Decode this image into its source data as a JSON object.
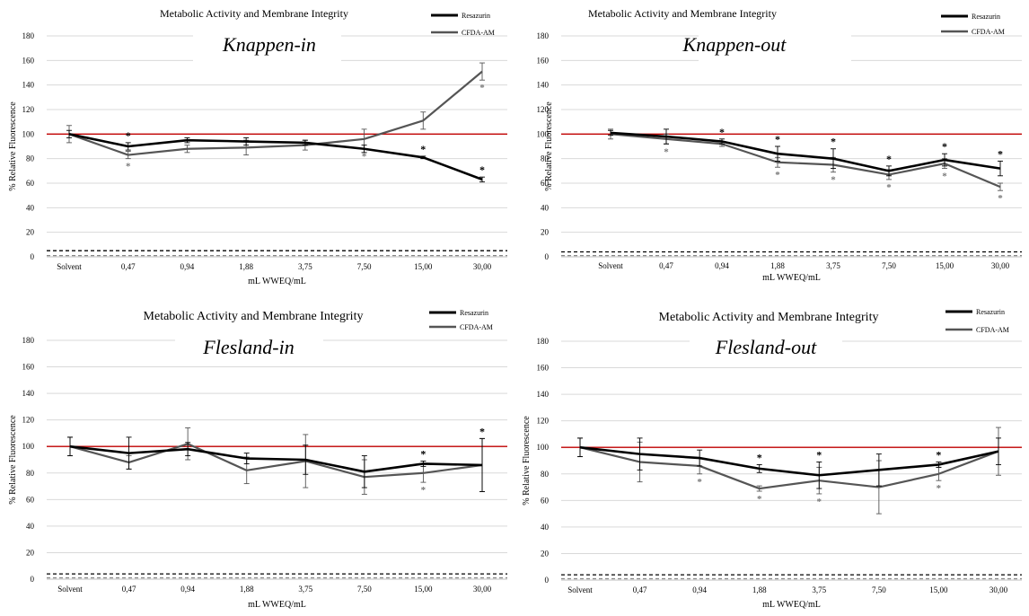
{
  "figure": {
    "colors": {
      "resazurin": "#000000",
      "cfda": "#555555",
      "reference": "#c00000",
      "threshold_resazurin": "#000000",
      "threshold_cfda": "#888888",
      "grid": "#d9d9d9",
      "significance_resazurin": "#000000",
      "significance_cfda": "#777777"
    }
  },
  "chart_data": [
    {
      "type": "line",
      "title": "Metabolic Activity and Membrane Integrity",
      "subtitle": "Knappen-in",
      "xlabel": "mL WWEQ/mL",
      "ylabel": "% Relative Fluorescence",
      "ylim": [
        0,
        180
      ],
      "yticks": [
        "0",
        "20",
        "40",
        "60",
        "80",
        "100",
        "120",
        "140",
        "160",
        "180"
      ],
      "grid": true,
      "legend": "top-right",
      "categories": [
        "Solvent",
        "0,47",
        "0,94",
        "1,88",
        "3,75",
        "7,50",
        "15,00",
        "30,00"
      ],
      "reference_line": 100,
      "threshold_lines": [
        5,
        1
      ],
      "series": [
        {
          "name": "Resazurin",
          "values": [
            100,
            90,
            95,
            94,
            93,
            88,
            81,
            63
          ],
          "errors": [
            3,
            3,
            2,
            3,
            2,
            3,
            1,
            2
          ],
          "significant": [
            false,
            true,
            false,
            false,
            false,
            false,
            true,
            true
          ]
        },
        {
          "name": "CFDA-AM",
          "values": [
            100,
            83,
            88,
            89,
            91,
            96,
            111,
            151
          ],
          "errors": [
            7,
            3,
            3,
            6,
            4,
            8,
            7,
            7
          ],
          "significant": [
            false,
            true,
            false,
            false,
            false,
            true,
            false,
            true
          ]
        }
      ]
    },
    {
      "type": "line",
      "title": "Metabolic Activity and Membrane Integrity",
      "subtitle": "Knappen-out",
      "xlabel": "mL WWEQ/mL",
      "ylabel": "% Relative Fluorescence",
      "ylim": [
        0,
        180
      ],
      "yticks": [
        "0",
        "20",
        "40",
        "60",
        "80",
        "100",
        "120",
        "140",
        "160",
        "180"
      ],
      "grid": true,
      "legend": "top-right",
      "categories": [
        "Solvent",
        "0,47",
        "0,94",
        "1,88",
        "3,75",
        "7,50",
        "15,00",
        "30,00"
      ],
      "reference_line": 100,
      "threshold_lines": [
        4,
        1
      ],
      "series": [
        {
          "name": "Resazurin",
          "values": [
            101,
            98,
            94,
            84,
            80,
            70,
            79,
            72
          ],
          "errors": [
            2,
            6,
            2,
            6,
            8,
            4,
            5,
            6
          ],
          "significant": [
            false,
            false,
            true,
            true,
            true,
            true,
            true,
            true
          ]
        },
        {
          "name": "CFDA-AM",
          "values": [
            100,
            96,
            92,
            77,
            75,
            67,
            76,
            57
          ],
          "errors": [
            4,
            4,
            2,
            4,
            6,
            4,
            4,
            3
          ],
          "significant": [
            false,
            true,
            false,
            true,
            true,
            true,
            true,
            true
          ]
        }
      ]
    },
    {
      "type": "line",
      "title": "Metabolic Activity and Membrane Integrity",
      "subtitle": "Flesland-in",
      "xlabel": "mL WWEQ/mL",
      "ylabel": "% Relative Fluorescence",
      "ylim": [
        0,
        180
      ],
      "yticks": [
        "0",
        "20",
        "40",
        "60",
        "80",
        "100",
        "120",
        "140",
        "160",
        "180"
      ],
      "grid": true,
      "legend": "top-right",
      "categories": [
        "Solvent",
        "0,47",
        "0,94",
        "1,88",
        "3,75",
        "7,50",
        "15,00",
        "30,00"
      ],
      "reference_line": 100,
      "threshold_lines": [
        4,
        1
      ],
      "series": [
        {
          "name": "Resazurin",
          "values": [
            100,
            95,
            98,
            91,
            90,
            81,
            87,
            86
          ],
          "errors": [
            7,
            12,
            5,
            4,
            11,
            12,
            2,
            20
          ],
          "significant": [
            false,
            false,
            false,
            false,
            false,
            false,
            true,
            true
          ]
        },
        {
          "name": "CFDA-AM",
          "values": [
            100,
            88,
            102,
            82,
            89,
            77,
            80,
            86
          ],
          "errors": [
            7,
            5,
            12,
            10,
            20,
            13,
            7,
            20
          ],
          "significant": [
            false,
            false,
            false,
            false,
            false,
            false,
            true,
            false
          ]
        }
      ]
    },
    {
      "type": "line",
      "title": "Metabolic Activity and Membrane Integrity",
      "subtitle": "Flesland-out",
      "xlabel": "mL WWEQ/mL",
      "ylabel": "% Relative Fluorescence",
      "ylim": [
        0,
        180
      ],
      "yticks": [
        "0",
        "20",
        "40",
        "60",
        "80",
        "100",
        "120",
        "140",
        "160",
        "180"
      ],
      "grid": true,
      "legend": "top-right",
      "categories": [
        "Solvent",
        "0,47",
        "0,94",
        "1,88",
        "3,75",
        "7,50",
        "15,00",
        "30,00"
      ],
      "reference_line": 100,
      "threshold_lines": [
        4,
        1
      ],
      "series": [
        {
          "name": "Resazurin",
          "values": [
            100,
            95,
            92,
            84,
            79,
            83,
            87,
            97
          ],
          "errors": [
            7,
            12,
            6,
            3,
            10,
            12,
            2,
            10
          ],
          "significant": [
            false,
            false,
            false,
            true,
            true,
            false,
            true,
            false
          ]
        },
        {
          "name": "CFDA-AM",
          "values": [
            100,
            89,
            86,
            69,
            75,
            70,
            80,
            97
          ],
          "errors": [
            7,
            15,
            6,
            2,
            10,
            20,
            5,
            18
          ],
          "significant": [
            false,
            false,
            true,
            true,
            true,
            false,
            true,
            false
          ]
        }
      ]
    }
  ]
}
